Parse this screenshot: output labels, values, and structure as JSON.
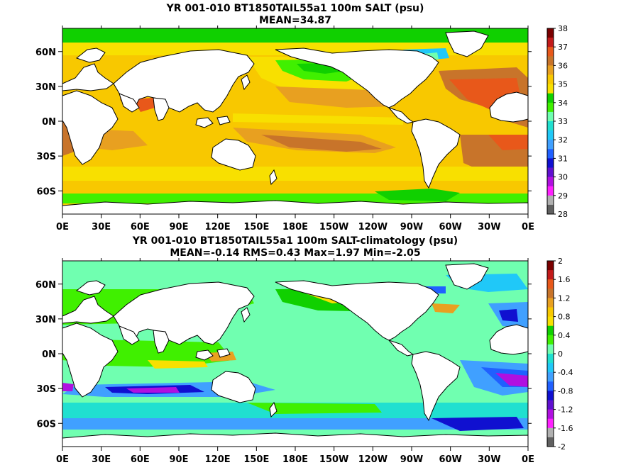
{
  "maps": [
    {
      "title": "YR 001-010 BT1850TAIL55a1 100m SALT (psu)",
      "subtitle": "MEAN=34.87",
      "lon_ticks": [
        "0E",
        "30E",
        "60E",
        "90E",
        "120E",
        "150E",
        "180E",
        "150W",
        "120W",
        "90W",
        "60W",
        "30W",
        "0E"
      ],
      "lat_ticks": [
        "60N",
        "30N",
        "0N",
        "30S",
        "60S"
      ],
      "colorbar": {
        "labels": [
          "38",
          "37",
          "36",
          "35",
          "34",
          "33",
          "32",
          "31",
          "30",
          "29",
          "28"
        ],
        "colors": [
          "#7a0000",
          "#c21a1a",
          "#e8581a",
          "#c8742a",
          "#e8a020",
          "#f8c800",
          "#f8e000",
          "#10d000",
          "#40f000",
          "#70ffb0",
          "#20e0d0",
          "#20c8f8",
          "#40a0ff",
          "#2060ff",
          "#1010d0",
          "#6010d0",
          "#b010e0",
          "#ff20ff",
          "#b0b0b0",
          "#606060"
        ]
      }
    },
    {
      "title": "YR 001-010 BT1850TAIL55a1 100m SALT-climatology (psu)",
      "subtitle": "MEAN=-0.14   RMS=0.43   Max=1.97   Min=-2.05",
      "lon_ticks": [
        "0E",
        "30E",
        "60E",
        "90E",
        "120E",
        "150E",
        "180E",
        "150W",
        "120W",
        "90W",
        "60W",
        "30W",
        "0E"
      ],
      "lat_ticks": [
        "60N",
        "30N",
        "0N",
        "30S",
        "60S"
      ],
      "colorbar": {
        "labels": [
          "2",
          "1.6",
          "1.2",
          "0.8",
          "0.4",
          "0",
          "-0.4",
          "-0.8",
          "-1.2",
          "-1.6",
          "-2"
        ],
        "colors": [
          "#7a0000",
          "#c21a1a",
          "#e8581a",
          "#c8742a",
          "#e8a020",
          "#f8c800",
          "#f8e000",
          "#10d000",
          "#40f000",
          "#70ffb0",
          "#20e0d0",
          "#20c8f8",
          "#40a0ff",
          "#2060ff",
          "#1010d0",
          "#6010d0",
          "#b010e0",
          "#ff20ff",
          "#b0b0b0",
          "#606060"
        ]
      }
    }
  ]
}
